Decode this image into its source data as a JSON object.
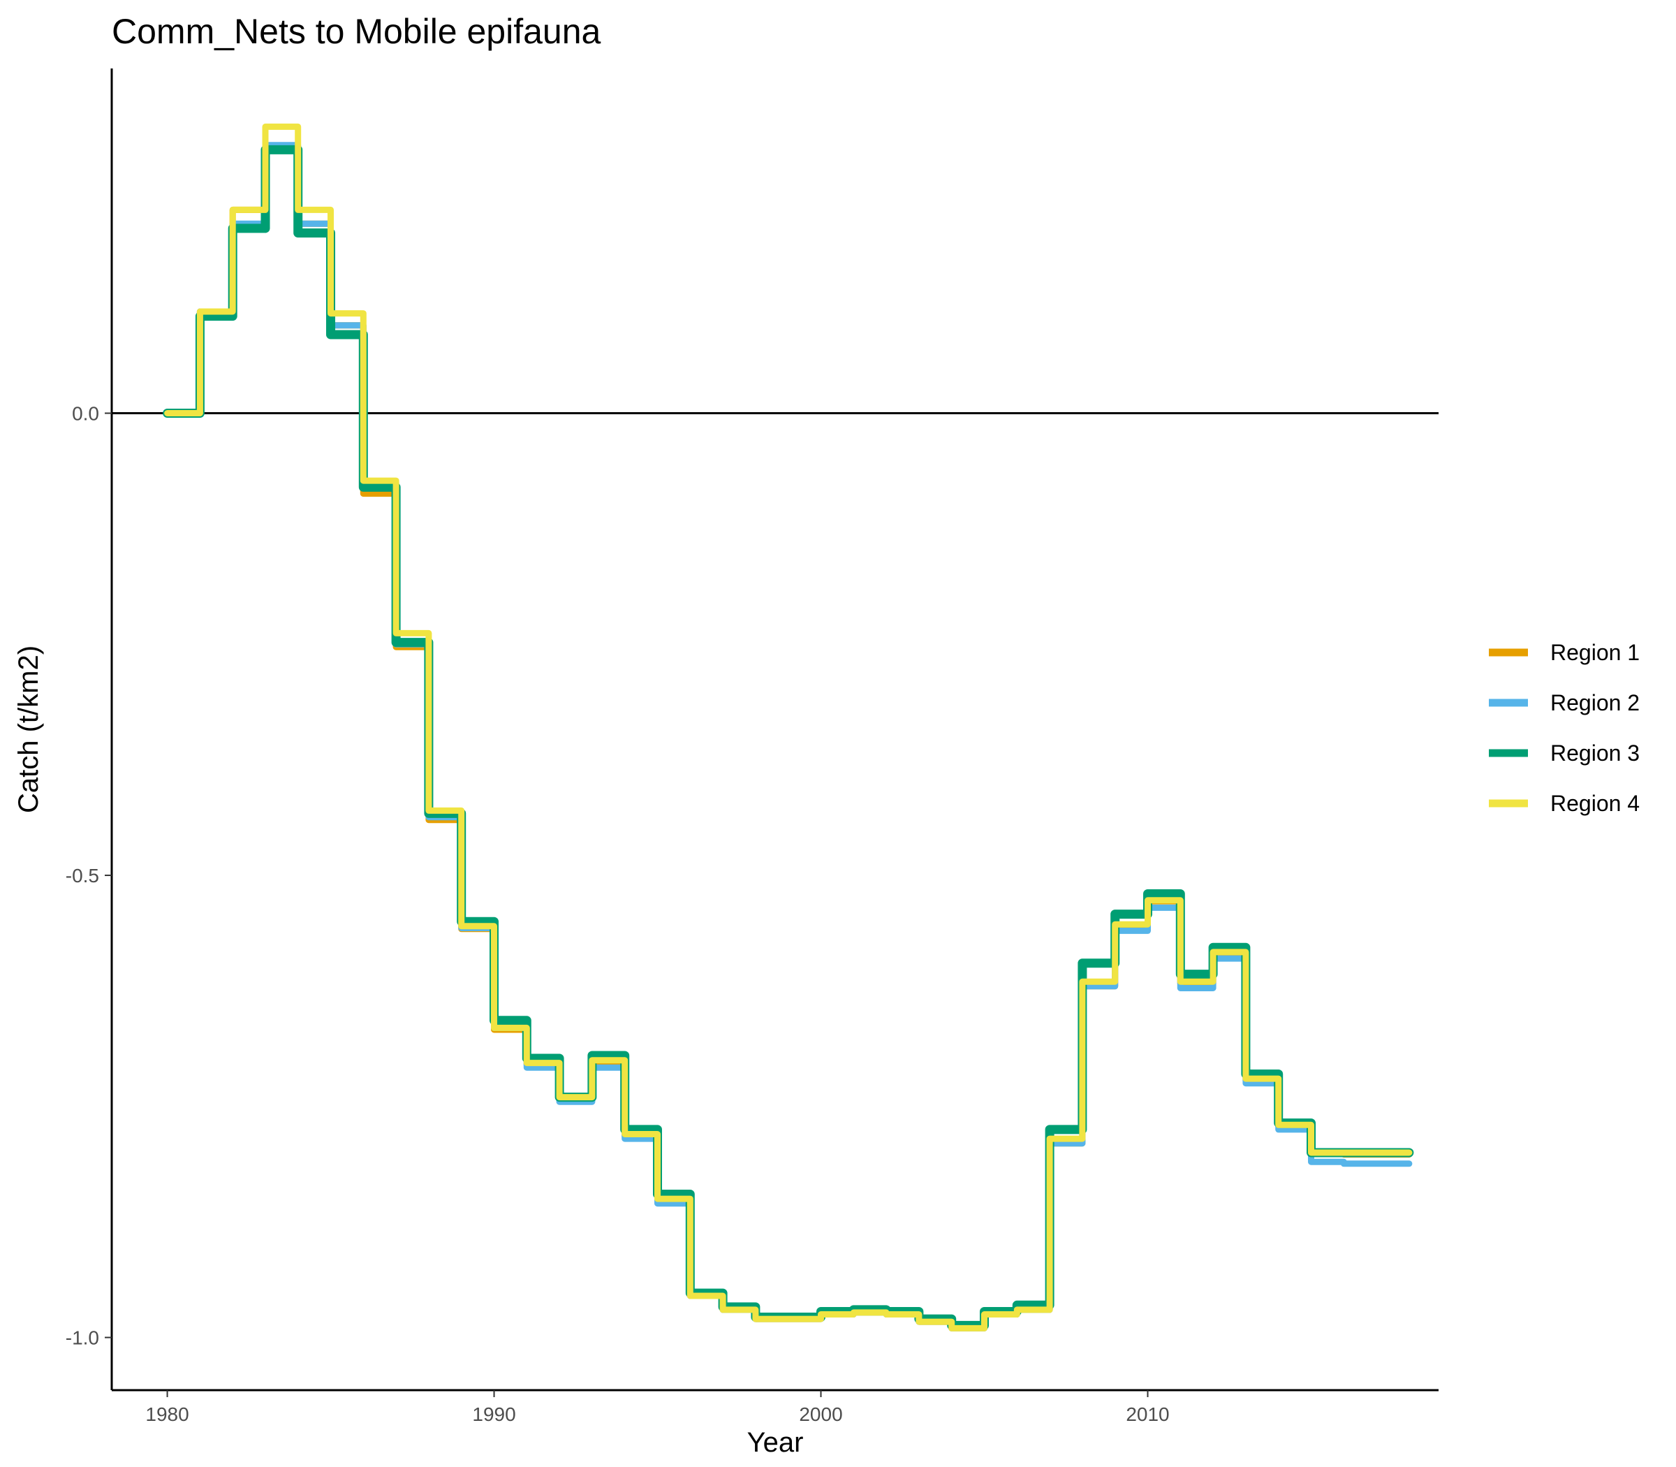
{
  "chart_data": {
    "type": "line",
    "title": "Comm_Nets to Mobile epifauna",
    "xlabel": "Year",
    "ylabel": "Catch (t/km2)",
    "xlim": [
      1978.3,
      2018.9
    ],
    "ylim": [
      -1.057,
      0.373
    ],
    "x_ticks": [
      1980,
      1990,
      2000,
      2010
    ],
    "y_ticks": [
      0.0,
      -0.5,
      -1.0
    ],
    "y_tick_labels": [
      "0.0",
      "-0.5",
      "-1.0"
    ],
    "reference_line_y": 0,
    "legend_position": "right",
    "grid": false,
    "line_shape": "step (monthly data)",
    "x": [
      1980,
      1981,
      1982,
      1983,
      1984,
      1985,
      1986,
      1987,
      1988,
      1989,
      1990,
      1991,
      1992,
      1993,
      1994,
      1995,
      1996,
      1997,
      1998,
      1999,
      2000,
      2001,
      2002,
      2003,
      2004,
      2005,
      2006,
      2007,
      2008,
      2009,
      2010,
      2011,
      2012,
      2013,
      2014,
      2015,
      2016,
      2017
    ],
    "series": [
      {
        "name": "Region 1",
        "color": "#E69F00",
        "values": [
          0.0,
          0.11,
          0.22,
          0.285,
          0.205,
          0.095,
          -0.087,
          -0.253,
          -0.44,
          -0.558,
          -0.667,
          -0.705,
          -0.742,
          -0.705,
          -0.782,
          -0.852,
          -0.955,
          -0.97,
          -0.98,
          -0.98,
          -0.975,
          -0.973,
          -0.975,
          -0.983,
          -0.99,
          -0.975,
          -0.97,
          -0.79,
          -0.62,
          -0.555,
          -0.528,
          -0.617,
          -0.585,
          -0.722,
          -0.77,
          -0.8,
          -0.802,
          -0.802
        ]
      },
      {
        "name": "Region 2",
        "color": "#56B4E9",
        "values": [
          0.0,
          0.11,
          0.205,
          0.29,
          0.205,
          0.095,
          -0.075,
          -0.25,
          -0.437,
          -0.557,
          -0.665,
          -0.708,
          -0.745,
          -0.708,
          -0.785,
          -0.855,
          -0.955,
          -0.97,
          -0.98,
          -0.98,
          -0.975,
          -0.973,
          -0.975,
          -0.983,
          -0.99,
          -0.975,
          -0.97,
          -0.79,
          -0.62,
          -0.56,
          -0.535,
          -0.622,
          -0.59,
          -0.725,
          -0.775,
          -0.81,
          -0.812,
          -0.812
        ]
      },
      {
        "name": "Region 3",
        "color": "#009E73",
        "values": [
          0.0,
          0.105,
          0.2,
          0.285,
          0.195,
          0.085,
          -0.08,
          -0.248,
          -0.433,
          -0.55,
          -0.657,
          -0.698,
          -0.74,
          -0.695,
          -0.775,
          -0.845,
          -0.952,
          -0.967,
          -0.978,
          -0.978,
          -0.972,
          -0.97,
          -0.972,
          -0.98,
          -0.987,
          -0.972,
          -0.965,
          -0.775,
          -0.595,
          -0.542,
          -0.52,
          -0.607,
          -0.578,
          -0.715,
          -0.768,
          -0.8,
          -0.8,
          -0.8
        ]
      },
      {
        "name": "Region 4",
        "color": "#F0E442",
        "values": [
          0.0,
          0.11,
          0.22,
          0.31,
          0.22,
          0.108,
          -0.073,
          -0.238,
          -0.43,
          -0.555,
          -0.665,
          -0.703,
          -0.74,
          -0.7,
          -0.78,
          -0.85,
          -0.955,
          -0.97,
          -0.98,
          -0.98,
          -0.975,
          -0.973,
          -0.975,
          -0.983,
          -0.99,
          -0.975,
          -0.97,
          -0.785,
          -0.615,
          -0.553,
          -0.527,
          -0.615,
          -0.583,
          -0.72,
          -0.77,
          -0.8,
          -0.8,
          -0.8
        ]
      }
    ]
  }
}
